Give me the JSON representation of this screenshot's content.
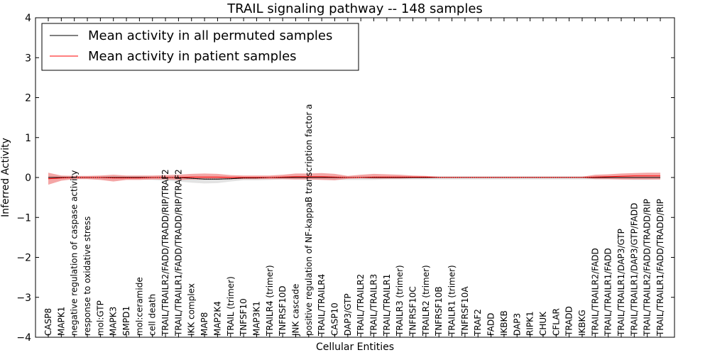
{
  "chart_data": {
    "type": "line",
    "title": "TRAIL signaling pathway -- 148 samples",
    "xlabel": "Cellular Entities",
    "ylabel": "Inferred Activity",
    "ylim": [
      -4,
      4
    ],
    "yticks": [
      -4,
      -3,
      -2,
      -1,
      0,
      1,
      2,
      3,
      4
    ],
    "grid": false,
    "legend_position": "top-left",
    "categories": [
      "CASP8",
      "MAPK1",
      "negative regulation of caspase activity",
      "response to oxidative stress",
      "mol:GTP",
      "MAPK3",
      "SMPD1",
      "mol:ceramide",
      "cell death",
      "TRAIL/TRAILR2/FADD/TRADD/RIP/TRAF2",
      "TRAIL/TRAILR1/FADD/TRADD/RIP/TRAF2",
      "IKK complex",
      "MAP8",
      "MAP2K4",
      "TRAIL (trimer)",
      "TNFSF10",
      "MAP3K1",
      "TRAILR4 (trimer)",
      "TNFRSF10D",
      "JNK cascade",
      "positive regulation of NF-kappaB transcription factor a",
      "TRAIL/TRAILR4",
      "CASP10",
      "DAP3/GTP",
      "TRAIL/TRAILR2",
      "TRAIL/TRAILR3",
      "TRAIL/TRAILR1",
      "TRAILR3 (trimer)",
      "TNFRSF10C",
      "TRAILR2 (trimer)",
      "TNFRSF10B",
      "TRAILR1 (trimer)",
      "TNFRSF10A",
      "TRAF2",
      "FADD",
      "IKBKB",
      "DAP3",
      "RIPK1",
      "CHUK",
      "CFLAR",
      "TRADD",
      "IKBKG",
      "TRAIL/TRAILR2/FADD",
      "TRAIL/TRAILR1/FADD",
      "TRAIL/TRAILR1/DAP3/GTP",
      "TRAIL/TRAILR1/DAP3/GTP/FADD",
      "TRAIL/TRAILR2/FADD/TRADD/RIP",
      "TRAIL/TRAILR1/FADD/TRADD/RIP"
    ],
    "series": [
      {
        "name": "Mean activity in all permuted samples",
        "color": "#000000",
        "band_color": "#c0c0c0",
        "values": [
          0,
          0,
          0,
          0,
          0,
          0,
          0,
          0,
          0,
          0,
          0,
          -0.02,
          -0.04,
          -0.04,
          -0.03,
          -0.01,
          -0.01,
          0,
          0,
          0,
          0,
          0,
          0,
          0,
          0,
          0,
          0,
          0,
          0,
          0,
          0,
          0,
          0,
          0,
          0,
          0,
          0,
          0,
          0,
          0,
          0,
          0,
          0,
          0,
          0,
          0,
          0,
          0
        ],
        "band_low": [
          -0.05,
          -0.04,
          -0.04,
          -0.04,
          -0.05,
          -0.06,
          -0.05,
          -0.05,
          -0.06,
          -0.08,
          -0.1,
          -0.13,
          -0.15,
          -0.14,
          -0.1,
          -0.07,
          -0.07,
          -0.06,
          -0.05,
          -0.05,
          -0.05,
          -0.05,
          -0.06,
          -0.06,
          -0.06,
          -0.06,
          -0.05,
          -0.05,
          -0.05,
          -0.05,
          -0.05,
          -0.05,
          -0.05,
          -0.05,
          -0.05,
          -0.05,
          -0.05,
          -0.05,
          -0.05,
          -0.05,
          -0.05,
          -0.05,
          -0.05,
          -0.05,
          -0.05,
          -0.06,
          -0.06,
          -0.05
        ],
        "band_high": [
          0.04,
          0.03,
          0.03,
          0.03,
          0.03,
          0.03,
          0.03,
          0.03,
          0.03,
          0.03,
          0.03,
          0.02,
          0.02,
          0.02,
          0.02,
          0.02,
          0.02,
          0.02,
          0.02,
          0.03,
          0.03,
          0.03,
          0.03,
          0.03,
          0.03,
          0.03,
          0.03,
          0.03,
          0.03,
          0.03,
          0.03,
          0.03,
          0.03,
          0.03,
          0.03,
          0.03,
          0.03,
          0.03,
          0.03,
          0.03,
          0.03,
          0.03,
          0.03,
          0.03,
          0.03,
          0.03,
          0.03,
          0.03
        ]
      },
      {
        "name": "Mean activity in patient samples",
        "color": "#ff0000",
        "band_color": "#f08080",
        "values": [
          -0.03,
          -0.01,
          0,
          0,
          0,
          -0.01,
          -0.01,
          -0.01,
          0,
          0,
          0,
          0.01,
          0.01,
          0.01,
          0,
          0,
          0,
          0,
          0.01,
          0.02,
          0.02,
          0.02,
          0.01,
          0,
          0,
          0.01,
          0.01,
          0.01,
          0.01,
          0.01,
          0,
          0,
          0,
          0,
          0,
          0,
          0,
          0,
          0,
          0,
          0,
          0,
          0.01,
          0.02,
          0.03,
          0.04,
          0.04,
          0.04
        ],
        "band_low": [
          -0.18,
          -0.08,
          -0.04,
          -0.04,
          -0.06,
          -0.1,
          -0.06,
          -0.06,
          -0.05,
          -0.05,
          -0.06,
          -0.05,
          -0.05,
          -0.05,
          -0.04,
          -0.04,
          -0.04,
          -0.04,
          -0.04,
          -0.05,
          -0.05,
          -0.06,
          -0.07,
          -0.03,
          -0.02,
          -0.03,
          -0.03,
          -0.03,
          -0.02,
          -0.02,
          -0.01,
          -0.01,
          -0.01,
          -0.01,
          -0.01,
          -0.01,
          -0.01,
          -0.01,
          -0.01,
          -0.01,
          -0.01,
          -0.01,
          -0.04,
          -0.04,
          -0.05,
          -0.05,
          -0.05,
          -0.05
        ],
        "band_high": [
          0.12,
          0.05,
          0.04,
          0.04,
          0.05,
          0.07,
          0.05,
          0.05,
          0.05,
          0.06,
          0.07,
          0.09,
          0.1,
          0.09,
          0.06,
          0.05,
          0.05,
          0.05,
          0.07,
          0.1,
          0.1,
          0.11,
          0.09,
          0.04,
          0.07,
          0.09,
          0.08,
          0.07,
          0.05,
          0.04,
          0.02,
          0.02,
          0.02,
          0.02,
          0.02,
          0.02,
          0.02,
          0.02,
          0.02,
          0.02,
          0.02,
          0.02,
          0.07,
          0.08,
          0.1,
          0.11,
          0.12,
          0.12
        ]
      }
    ]
  }
}
